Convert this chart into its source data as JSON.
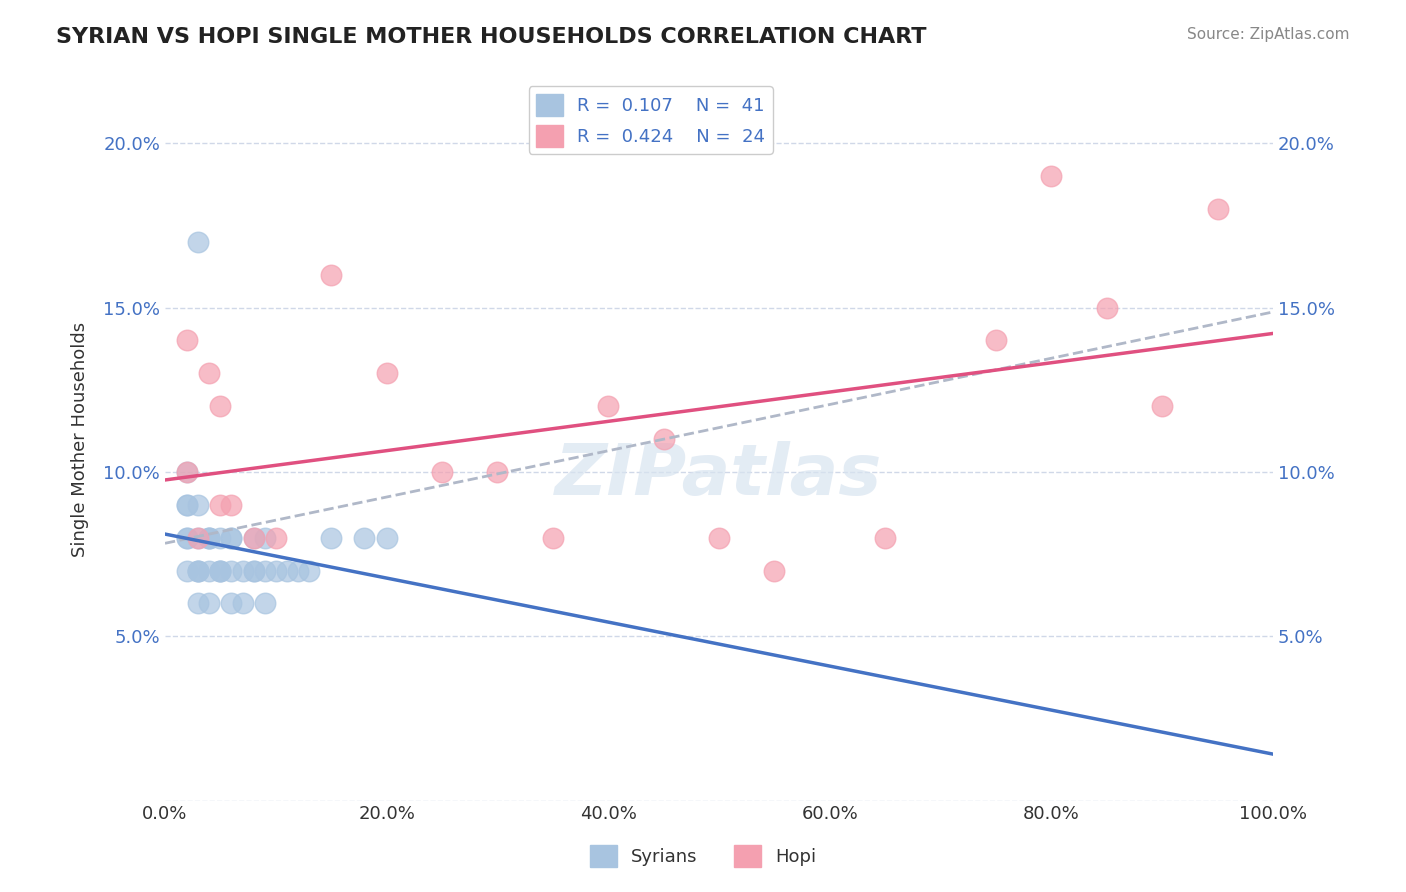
{
  "title": "SYRIAN VS HOPI SINGLE MOTHER HOUSEHOLDS CORRELATION CHART",
  "source": "Source: ZipAtlas.com",
  "ylabel": "Single Mother Households",
  "xlabel": "",
  "xlim": [
    0,
    100
  ],
  "ylim": [
    0,
    22
  ],
  "ytick_labels": [
    "",
    "5.0%",
    "10.0%",
    "15.0%",
    "20.0%"
  ],
  "ytick_values": [
    0,
    5,
    10,
    15,
    20
  ],
  "xtick_labels": [
    "0.0%",
    "20.0%",
    "40.0%",
    "60.0%",
    "80.0%",
    "100.0%"
  ],
  "xtick_values": [
    0,
    20,
    40,
    60,
    80,
    100
  ],
  "legend_r1": "R =  0.107",
  "legend_n1": "N =  41",
  "legend_r2": "R =  0.424",
  "legend_n2": "N =  24",
  "watermark": "ZIPatlas",
  "blue_color": "#a8c4e0",
  "pink_color": "#f4a0b0",
  "line_blue": "#4472c4",
  "line_pink": "#e05080",
  "trend_dashed": "#b0b8c8",
  "syrians_x": [
    2,
    2,
    2,
    2,
    2,
    2,
    3,
    3,
    3,
    3,
    3,
    3,
    4,
    4,
    4,
    4,
    4,
    5,
    5,
    5,
    5,
    6,
    6,
    6,
    6,
    7,
    7,
    8,
    8,
    8,
    9,
    9,
    9,
    10,
    11,
    12,
    13,
    15,
    18,
    20,
    3
  ],
  "syrians_y": [
    7,
    8,
    8,
    9,
    9,
    10,
    6,
    7,
    7,
    7,
    8,
    9,
    6,
    7,
    8,
    8,
    8,
    7,
    7,
    7,
    8,
    6,
    7,
    8,
    8,
    6,
    7,
    7,
    7,
    8,
    6,
    7,
    8,
    7,
    7,
    7,
    7,
    8,
    8,
    8,
    17
  ],
  "hopi_x": [
    2,
    2,
    3,
    4,
    5,
    5,
    6,
    8,
    10,
    15,
    20,
    25,
    30,
    35,
    40,
    45,
    50,
    55,
    65,
    75,
    80,
    85,
    90,
    95
  ],
  "hopi_y": [
    14,
    10,
    8,
    13,
    12,
    9,
    9,
    8,
    8,
    16,
    13,
    10,
    10,
    8,
    12,
    11,
    8,
    7,
    8,
    14,
    19,
    15,
    12,
    18
  ],
  "background_color": "#ffffff",
  "grid_color": "#d0d8e8"
}
